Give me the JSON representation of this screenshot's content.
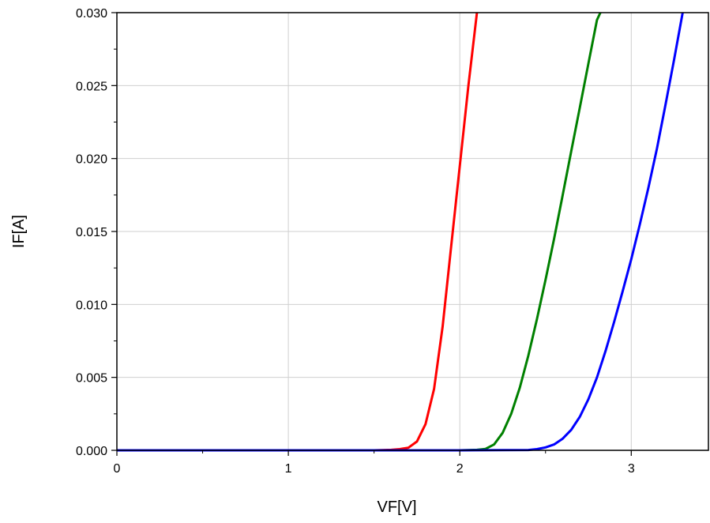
{
  "chart_data": {
    "type": "line",
    "xlabel": "VF[V]",
    "ylabel": "IF[A]",
    "xlim": [
      0,
      3.45
    ],
    "ylim": [
      0,
      0.03
    ],
    "x_ticks": [
      0,
      1,
      2,
      3
    ],
    "x_tick_labels": [
      "0",
      "1",
      "2",
      "3"
    ],
    "y_ticks": [
      0,
      0.005,
      0.01,
      0.015,
      0.02,
      0.025,
      0.03
    ],
    "y_tick_labels": [
      "0.000",
      "0.005",
      "0.010",
      "0.015",
      "0.020",
      "0.025",
      "0.030"
    ],
    "grid": true,
    "series": [
      {
        "color": "#ff0000",
        "x": [
          0,
          0.5,
          1.0,
          1.5,
          1.6,
          1.65,
          1.7,
          1.75,
          1.8,
          1.85,
          1.9,
          1.95,
          2.0,
          2.05,
          2.1
        ],
        "y": [
          0,
          0,
          0,
          0,
          3e-05,
          8e-05,
          0.00018,
          0.0006,
          0.0018,
          0.0042,
          0.0085,
          0.014,
          0.0195,
          0.025,
          0.0302
        ]
      },
      {
        "color": "#008000",
        "x": [
          0,
          0.5,
          1.0,
          1.5,
          2.0,
          2.1,
          2.15,
          2.2,
          2.25,
          2.3,
          2.35,
          2.4,
          2.45,
          2.5,
          2.55,
          2.6,
          2.65,
          2.7,
          2.75,
          2.8,
          2.82
        ],
        "y": [
          0,
          0,
          0,
          0,
          0,
          3e-05,
          0.0001,
          0.0004,
          0.0012,
          0.0025,
          0.0043,
          0.0065,
          0.009,
          0.0117,
          0.0145,
          0.0175,
          0.0205,
          0.0235,
          0.0265,
          0.0295,
          0.0302
        ]
      },
      {
        "color": "#0000ff",
        "x": [
          0,
          0.5,
          1.0,
          1.5,
          2.0,
          2.4,
          2.45,
          2.5,
          2.55,
          2.6,
          2.65,
          2.7,
          2.75,
          2.8,
          2.85,
          2.9,
          2.95,
          3.0,
          3.05,
          3.1,
          3.15,
          3.2,
          3.25,
          3.3
        ],
        "y": [
          0,
          0,
          0,
          0,
          0,
          2e-05,
          8e-05,
          0.0002,
          0.0004,
          0.0008,
          0.0014,
          0.0023,
          0.0035,
          0.005,
          0.0068,
          0.0088,
          0.0109,
          0.0131,
          0.0155,
          0.018,
          0.0207,
          0.0237,
          0.0268,
          0.0302
        ]
      }
    ]
  }
}
